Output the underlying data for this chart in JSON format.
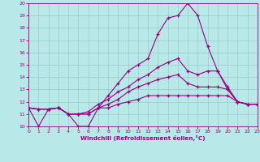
{
  "xlabel": "Windchill (Refroidissement éolien,°C)",
  "xlim": [
    0,
    23
  ],
  "ylim": [
    10,
    20
  ],
  "xticks": [
    0,
    1,
    2,
    3,
    4,
    5,
    6,
    7,
    8,
    9,
    10,
    11,
    12,
    13,
    14,
    15,
    16,
    17,
    18,
    19,
    20,
    21,
    22,
    23
  ],
  "yticks": [
    10,
    11,
    12,
    13,
    14,
    15,
    16,
    17,
    18,
    19,
    20
  ],
  "background_color": "#b8e8e8",
  "line_color": "#990080",
  "grid_color": "#99cccc",
  "lines": [
    [
      11.5,
      10.0,
      11.4,
      11.5,
      11.0,
      10.0,
      10.0,
      11.5,
      12.5,
      13.5,
      14.5,
      15.0,
      15.5,
      17.5,
      18.8,
      19.0,
      20.0,
      19.0,
      16.5,
      14.5,
      13.0,
      12.0,
      11.8,
      11.8
    ],
    [
      11.5,
      11.4,
      11.4,
      11.5,
      11.0,
      11.0,
      11.2,
      11.8,
      12.2,
      12.8,
      13.2,
      13.8,
      14.2,
      14.8,
      15.2,
      15.5,
      14.5,
      14.2,
      14.5,
      14.5,
      13.2,
      12.0,
      11.8,
      11.8
    ],
    [
      11.5,
      11.4,
      11.4,
      11.5,
      11.0,
      11.0,
      11.0,
      11.5,
      11.8,
      12.2,
      12.8,
      13.2,
      13.5,
      13.8,
      14.0,
      14.2,
      13.5,
      13.2,
      13.2,
      13.2,
      13.0,
      12.0,
      11.8,
      11.8
    ],
    [
      11.5,
      11.4,
      11.4,
      11.5,
      11.0,
      11.0,
      11.0,
      11.5,
      11.5,
      11.8,
      12.0,
      12.2,
      12.5,
      12.5,
      12.5,
      12.5,
      12.5,
      12.5,
      12.5,
      12.5,
      12.5,
      12.0,
      11.8,
      11.8
    ]
  ]
}
